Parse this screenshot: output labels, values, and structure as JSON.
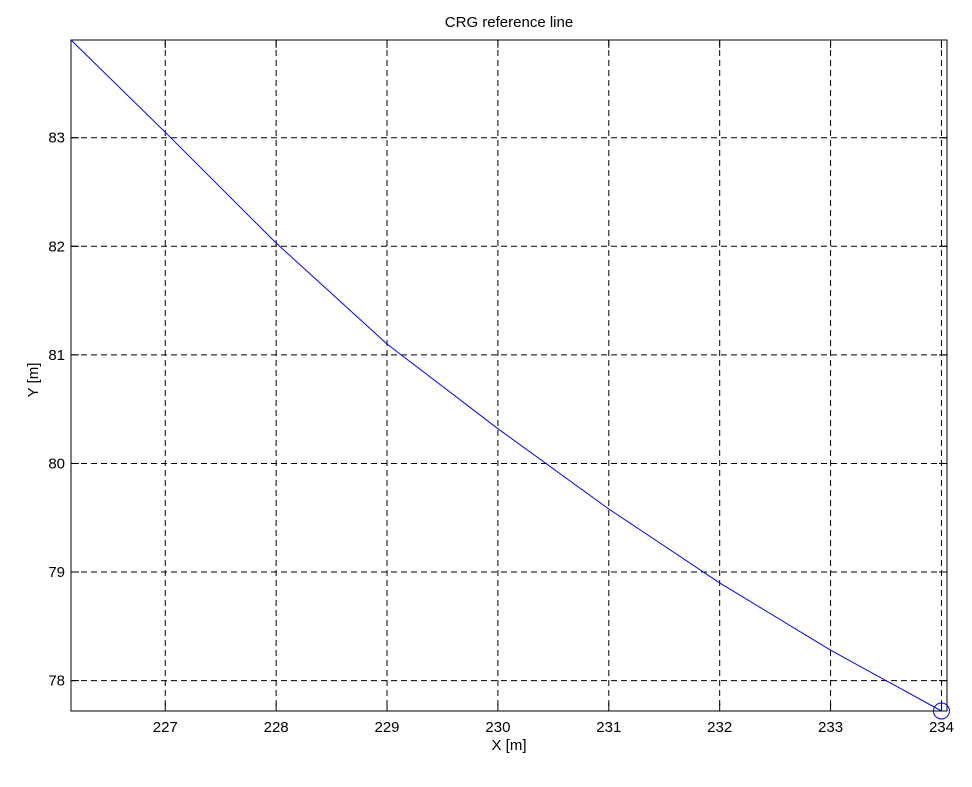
{
  "chart_data": {
    "type": "line",
    "title": "CRG reference line",
    "xlabel": "X [m]",
    "ylabel": "Y [m]",
    "xlim": [
      226.15,
      234.05
    ],
    "ylim": [
      77.72,
      83.9
    ],
    "xticks": [
      227,
      228,
      229,
      230,
      231,
      232,
      233,
      234
    ],
    "yticks": [
      78,
      79,
      80,
      81,
      82,
      83
    ],
    "xtick_labels": [
      "227",
      "228",
      "229",
      "230",
      "231",
      "232",
      "233",
      "234"
    ],
    "ytick_labels": [
      "78",
      "79",
      "80",
      "81",
      "82",
      "83"
    ],
    "grid": true,
    "grid_style": "dashed",
    "series": [
      {
        "color": "#0000ff",
        "x": [
          226.15,
          227.0,
          228.0,
          229.0,
          230.0,
          231.0,
          232.0,
          233.0,
          234.0
        ],
        "y": [
          83.9,
          83.05,
          82.03,
          81.1,
          80.32,
          79.58,
          78.9,
          78.28,
          77.72
        ]
      }
    ],
    "markers": [
      {
        "shape": "circle",
        "color": "#0000ff",
        "x": 234.0,
        "y": 77.72
      }
    ]
  }
}
